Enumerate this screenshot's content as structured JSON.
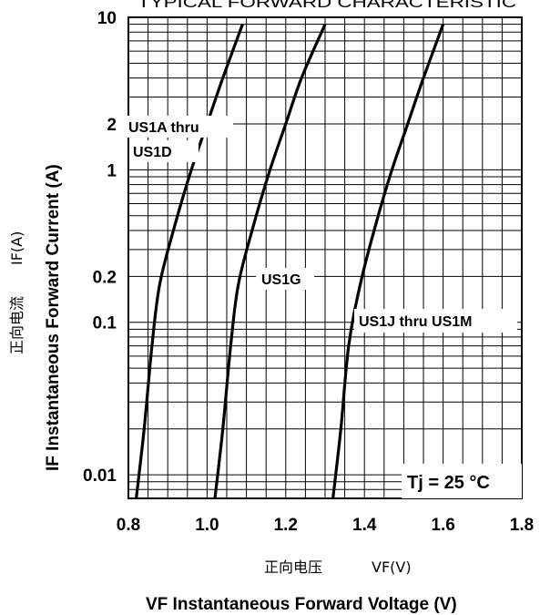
{
  "chart_data": {
    "type": "line",
    "title": "TYPICAL FORWARD CHARACTERISTIC",
    "xlabel_cn": "正向电压",
    "xlabel_cn_unit": "VF(V)",
    "xlabel": "VF Instantaneous Forward Voltage (V)",
    "ylabel_cn": "正向电流",
    "ylabel_cn_unit": "IF(A)",
    "ylabel": "IF Instantaneous Forward Current (A)",
    "xlim": [
      0.8,
      1.8
    ],
    "ylim": [
      0.007,
      10
    ],
    "yscale": "log",
    "grid": true,
    "x_ticks": [
      "0.8",
      "1.0",
      "1.2",
      "1.4",
      "1.6",
      "1.8"
    ],
    "y_ticks": [
      "0.01",
      "0.1",
      "0.2",
      "1",
      "2",
      "10"
    ],
    "annotation": "Tj = 25 °C",
    "series": [
      {
        "name": "US1A thru US1D",
        "x": [
          0.82,
          0.84,
          0.86,
          0.88,
          0.92,
          0.96,
          1.0,
          1.04,
          1.09
        ],
        "y": [
          0.007,
          0.02,
          0.07,
          0.18,
          0.45,
          1.0,
          2.0,
          4.0,
          9.0
        ]
      },
      {
        "name": "US1G",
        "x": [
          1.02,
          1.04,
          1.06,
          1.08,
          1.12,
          1.16,
          1.2,
          1.24,
          1.3
        ],
        "y": [
          0.007,
          0.02,
          0.07,
          0.18,
          0.45,
          1.0,
          2.0,
          4.0,
          9.0
        ]
      },
      {
        "name": "US1J thru US1M",
        "x": [
          1.32,
          1.34,
          1.36,
          1.39,
          1.43,
          1.47,
          1.51,
          1.55,
          1.6
        ],
        "y": [
          0.007,
          0.02,
          0.07,
          0.18,
          0.45,
          1.0,
          2.0,
          4.0,
          9.0
        ]
      }
    ]
  }
}
